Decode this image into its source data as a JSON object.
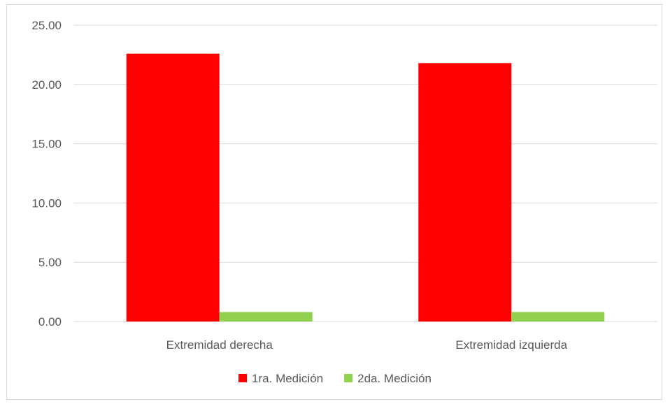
{
  "chart_data": {
    "type": "bar",
    "categories": [
      "Extremidad derecha",
      "Extremidad izquierda"
    ],
    "series": [
      {
        "name": "1ra. Medición",
        "values": [
          22.6,
          21.8
        ],
        "color": "#ff0000"
      },
      {
        "name": "2da. Medición",
        "values": [
          0.8,
          0.8
        ],
        "color": "#92d050"
      }
    ],
    "ylim": [
      0,
      25
    ],
    "yticks": [
      0,
      5,
      10,
      15,
      20,
      25
    ],
    "ytick_labels": [
      "0.00",
      "5.00",
      "10.00",
      "15.00",
      "20.00",
      "25.00"
    ],
    "grid": true,
    "legend_position": "bottom",
    "gridline_color": "#d9d9d9"
  }
}
